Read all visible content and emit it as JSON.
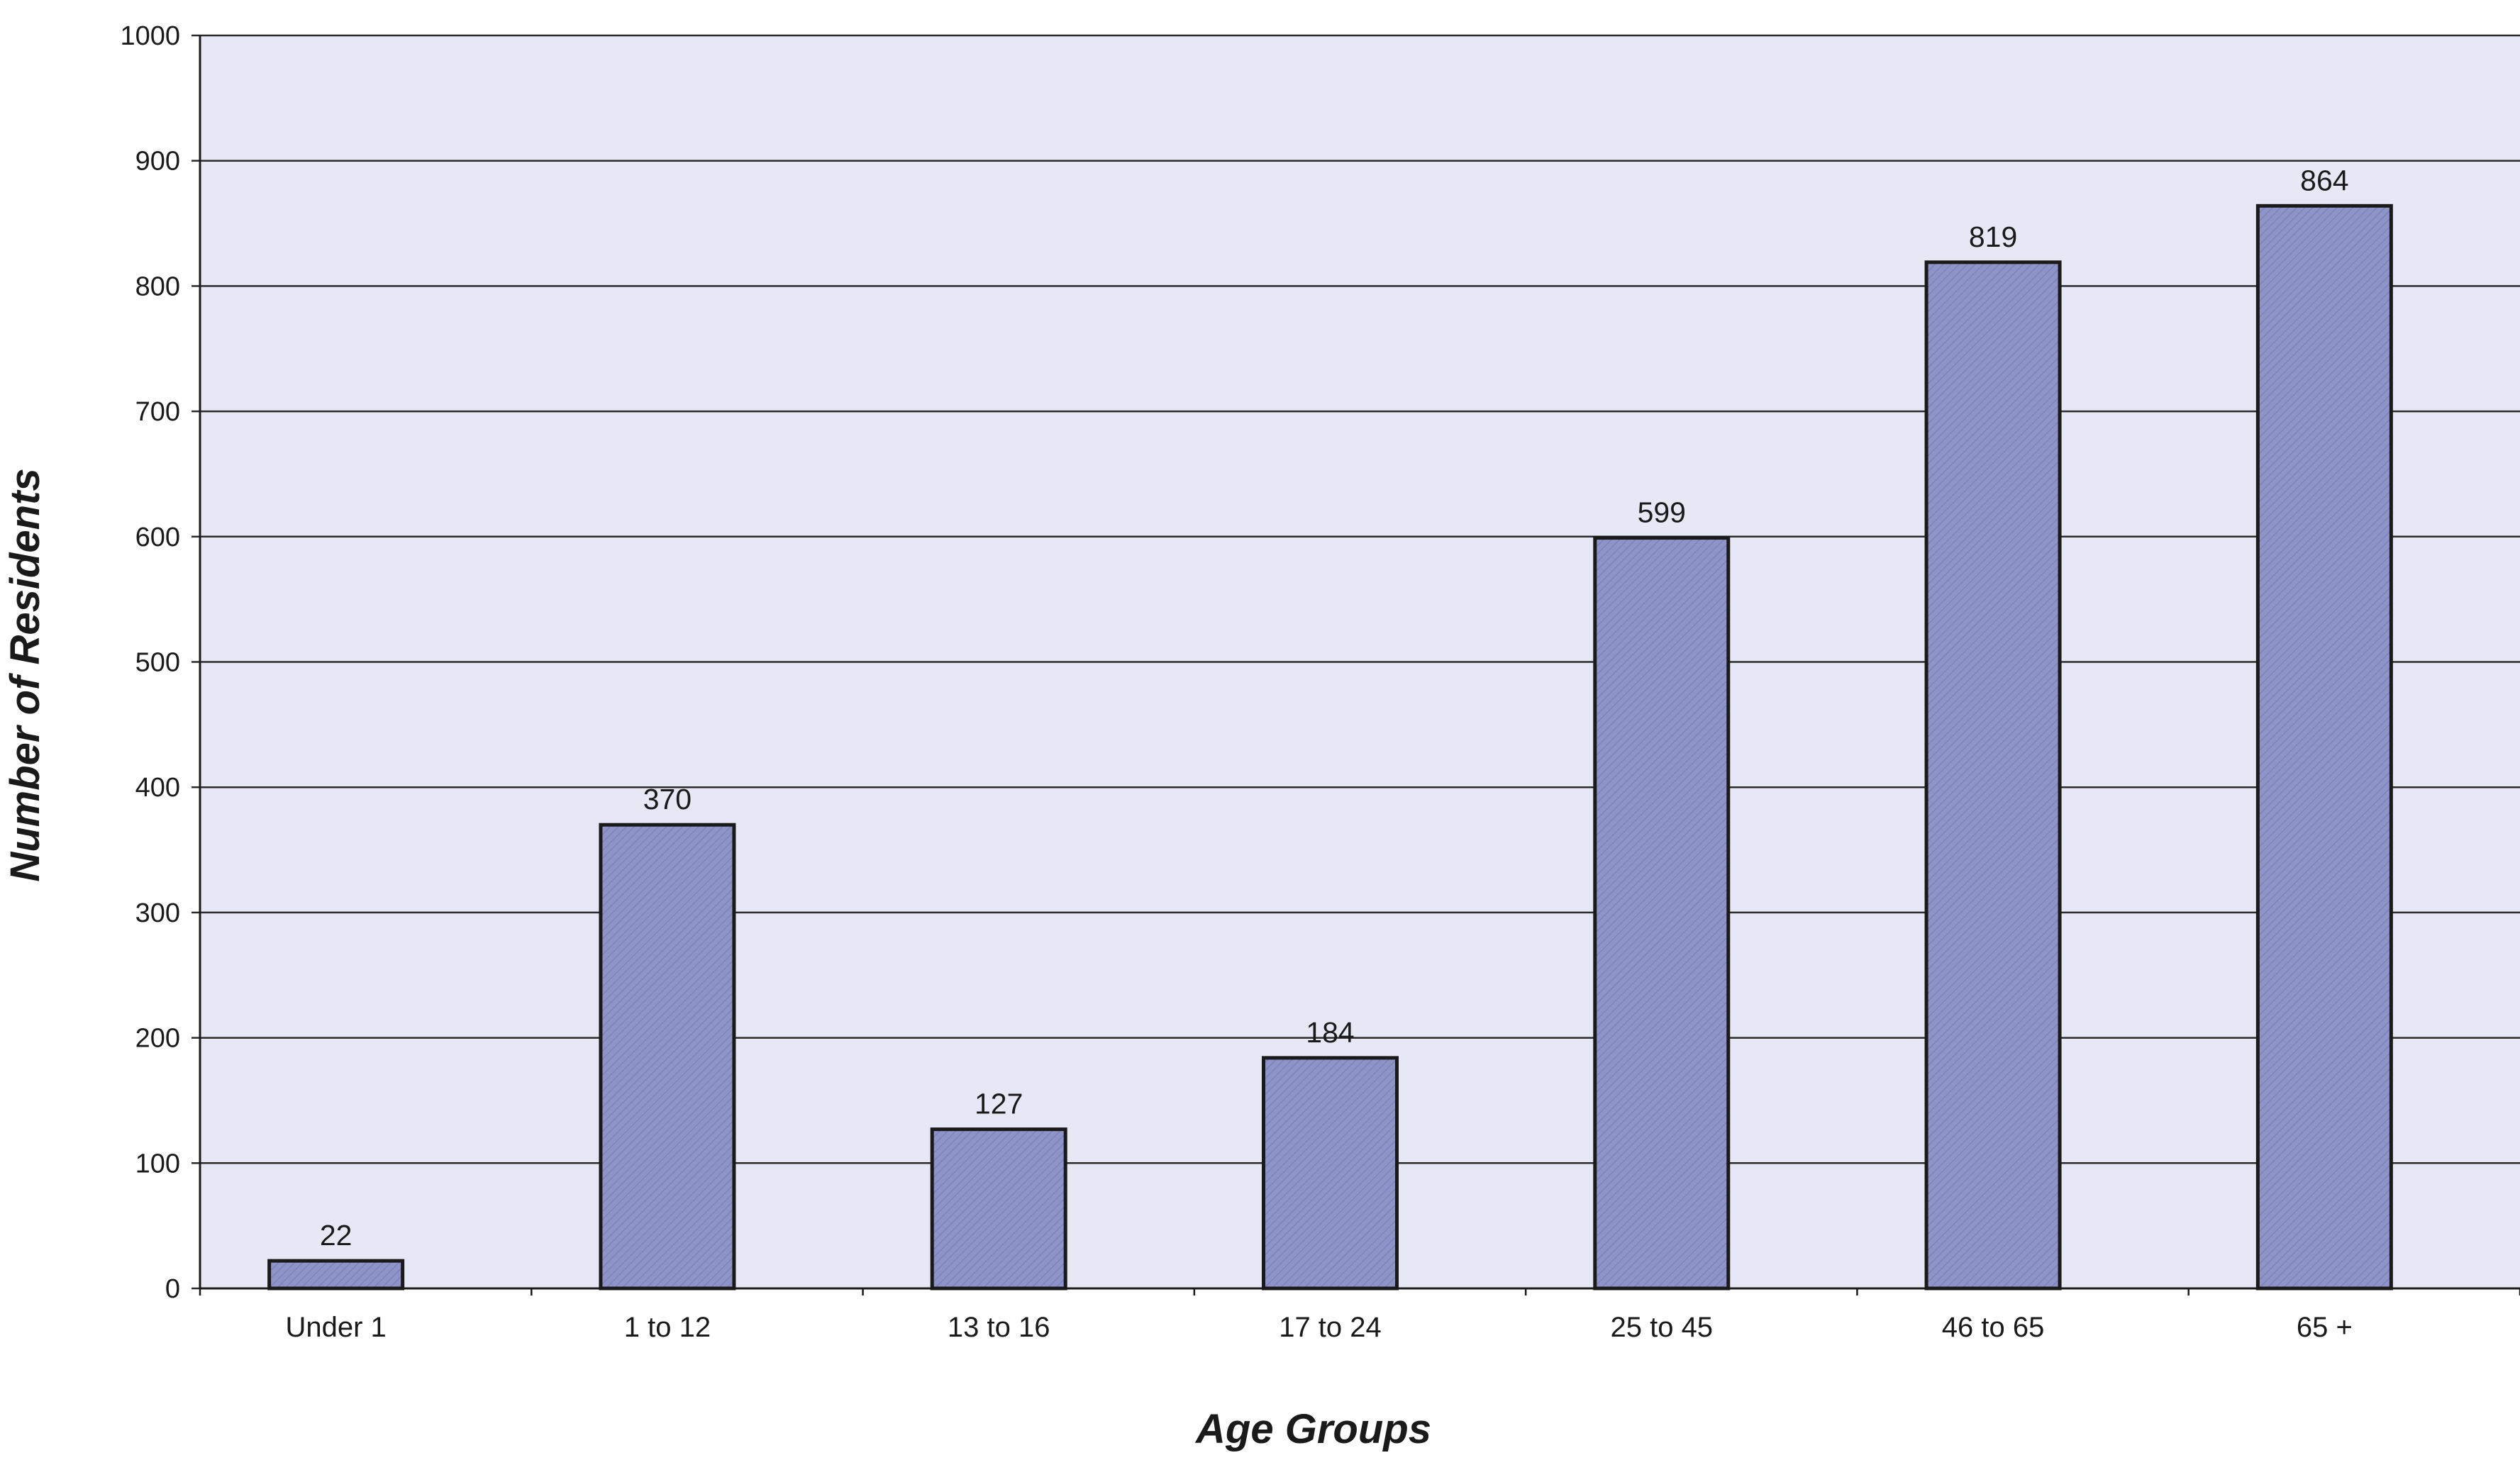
{
  "chart_data": {
    "type": "bar",
    "title": "",
    "xlabel": "Age Groups",
    "ylabel": "Number of Residents",
    "categories": [
      "Under 1",
      "1 to 12",
      "13 to 16",
      "17 to 24",
      "25 to 45",
      "46 to 65",
      "65 +"
    ],
    "values": [
      22,
      370,
      127,
      184,
      599,
      819,
      864
    ],
    "data_labels": [
      "22",
      "370",
      "127",
      "184",
      "599",
      "819",
      "864"
    ],
    "ylim": [
      0,
      1000
    ],
    "yticks": [
      0,
      100,
      200,
      300,
      400,
      500,
      600,
      700,
      800,
      900,
      1000
    ],
    "ytick_labels": [
      "0",
      "100",
      "200",
      "300",
      "400",
      "500",
      "600",
      "700",
      "800",
      "900",
      "1000"
    ],
    "grid": true,
    "legend": "none",
    "colors": {
      "plot_background": "#e6e9f5",
      "bar_fill": "#8f94c8",
      "bar_stroke": "#1a1a1a",
      "gridline": "#2a2a2a",
      "text": "#1a1a1a"
    }
  }
}
